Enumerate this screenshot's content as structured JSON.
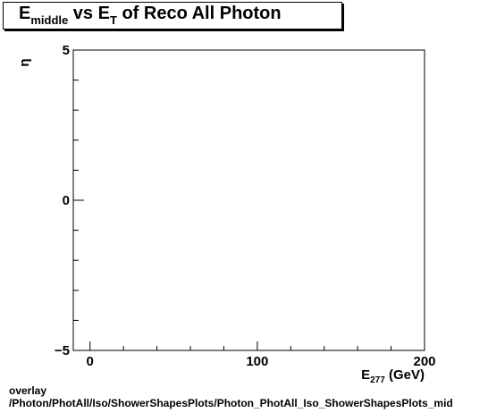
{
  "chart_data": {
    "type": "scatter",
    "title_parts": {
      "e_main": "E",
      "e_sub": "middle",
      "vs": " vs E",
      "t_sub": "T",
      "rest": " of Reco All Photon"
    },
    "xlabel": {
      "main": "E",
      "sub": "277",
      "unit": " (GeV)"
    },
    "ylabel": "η",
    "xlim": [
      -10,
      200
    ],
    "ylim": [
      -5,
      5
    ],
    "x_major_ticks": [
      0,
      100,
      200
    ],
    "y_major_ticks": [
      -5,
      0,
      5
    ],
    "x_minor_step": 20,
    "y_minor_step": 1,
    "x_tick_labels": [
      "0",
      "100",
      "200"
    ],
    "y_tick_labels": [
      "−5",
      "0",
      "5"
    ],
    "points": [],
    "grid": false
  },
  "footer": {
    "line1": "overlay",
    "line2": "/Photon/PhotAll/Iso/ShowerShapesPlots/Photon_PhotAll_Iso_ShowerShapesPlots_mid"
  }
}
